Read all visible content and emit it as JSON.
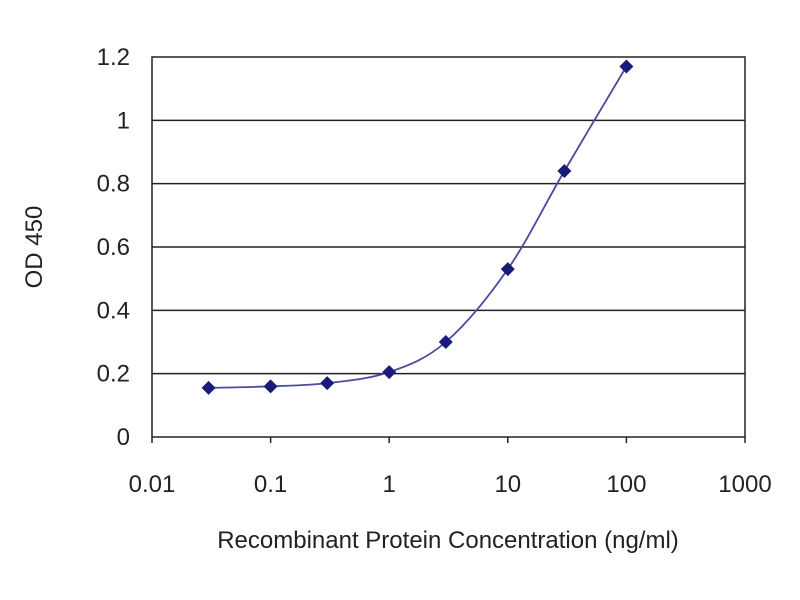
{
  "chart_data": {
    "type": "line",
    "title": "",
    "xlabel": "Recombinant Protein Concentration (ng/ml)",
    "ylabel": "OD 450",
    "xscale": "log",
    "xlim": [
      0.01,
      1000
    ],
    "ylim": [
      0,
      1.2
    ],
    "x_ticks": [
      "0.01",
      "0.1",
      "1",
      "10",
      "100",
      "1000"
    ],
    "y_ticks": [
      "0",
      "0.2",
      "0.4",
      "0.6",
      "0.8",
      "1",
      "1.2"
    ],
    "grid": "horizontal",
    "legend": "none",
    "series": [
      {
        "x": [
          0.03,
          0.1,
          0.3,
          1,
          3,
          10,
          30,
          100
        ],
        "y": [
          0.155,
          0.16,
          0.17,
          0.205,
          0.3,
          0.53,
          0.84,
          1.17
        ],
        "marker": "diamond",
        "smooth": true
      }
    ],
    "colors": {
      "marker": "#1a1a7a",
      "line": "#4a4aa0",
      "grid": "#222222"
    }
  }
}
